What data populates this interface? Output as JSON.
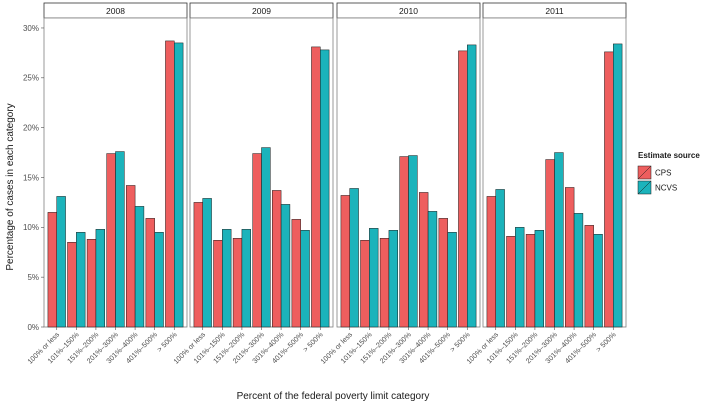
{
  "chart_data": {
    "type": "bar",
    "xlabel": "Percent of the  federal poverty limit category",
    "ylabel": "Percentage of cases in each category",
    "ylim": [
      0,
      0.31
    ],
    "yticks": [
      0,
      0.05,
      0.1,
      0.15,
      0.2,
      0.25,
      0.3
    ],
    "ytick_labels": [
      "0%",
      "5%",
      "10%",
      "15%",
      "20%",
      "25%",
      "30%"
    ],
    "categories": [
      "100% or less",
      "101%–150%",
      "151%–200%",
      "201%–300%",
      "301%–400%",
      "401%–500%",
      "> 500%"
    ],
    "legend": {
      "title": "Estimate source",
      "position": "right",
      "entries": [
        {
          "name": "CPS",
          "color": "#EE5E5E"
        },
        {
          "name": "NCVS",
          "color": "#1BB3BB"
        }
      ]
    },
    "panels": [
      {
        "label": "2008",
        "series": [
          {
            "name": "CPS",
            "values": [
              0.115,
              0.085,
              0.088,
              0.174,
              0.142,
              0.109,
              0.287
            ]
          },
          {
            "name": "NCVS",
            "values": [
              0.131,
              0.095,
              0.098,
              0.176,
              0.121,
              0.095,
              0.285
            ]
          }
        ]
      },
      {
        "label": "2009",
        "series": [
          {
            "name": "CPS",
            "values": [
              0.125,
              0.087,
              0.089,
              0.174,
              0.137,
              0.108,
              0.281
            ]
          },
          {
            "name": "NCVS",
            "values": [
              0.129,
              0.098,
              0.098,
              0.18,
              0.123,
              0.097,
              0.278
            ]
          }
        ]
      },
      {
        "label": "2010",
        "series": [
          {
            "name": "CPS",
            "values": [
              0.132,
              0.087,
              0.089,
              0.171,
              0.135,
              0.109,
              0.277
            ]
          },
          {
            "name": "NCVS",
            "values": [
              0.139,
              0.099,
              0.097,
              0.172,
              0.116,
              0.095,
              0.283
            ]
          }
        ]
      },
      {
        "label": "2011",
        "series": [
          {
            "name": "CPS",
            "values": [
              0.131,
              0.091,
              0.093,
              0.168,
              0.14,
              0.102,
              0.276
            ]
          },
          {
            "name": "NCVS",
            "values": [
              0.138,
              0.1,
              0.097,
              0.175,
              0.114,
              0.093,
              0.284
            ]
          }
        ]
      }
    ]
  }
}
